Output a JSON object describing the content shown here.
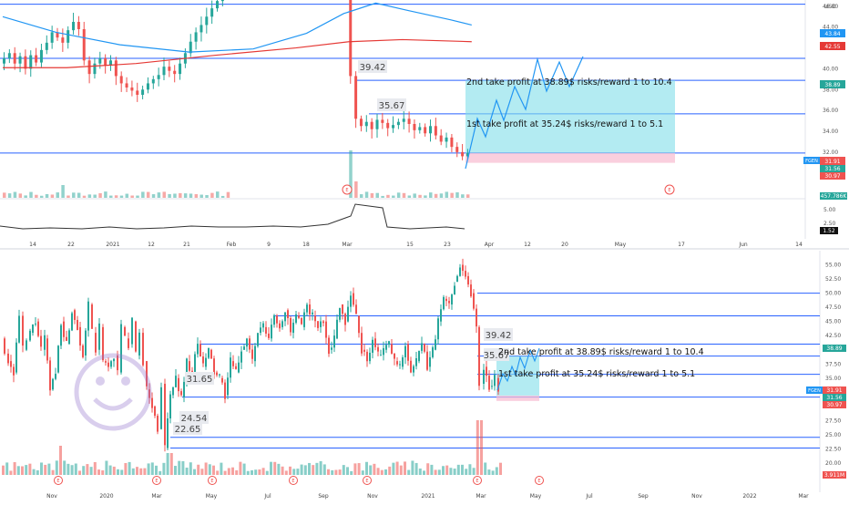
{
  "chart_data": [
    {
      "type": "candlestick",
      "symbol": "FGEN",
      "currency_label": "USD",
      "ylim": [
        30,
        46
      ],
      "y_ticks": [
        32,
        34,
        36,
        38,
        40,
        42,
        44,
        46
      ],
      "x_tick_labels": [
        "14",
        "22",
        "2021",
        "12",
        "21",
        "Feb",
        "9",
        "18",
        "Mar",
        "15",
        "23",
        "Apr",
        "12",
        "20",
        "May",
        "17",
        "Jun",
        "14"
      ],
      "price_labels": {
        "last": "31.91",
        "h1": "43.84",
        "h2": "42.55",
        "h3": "38.89",
        "h4": "31.56",
        "h5": "30.97"
      },
      "badges": {
        "high": "39.42",
        "mid": "35.67"
      },
      "annotations": {
        "tp2": "2nd take profit at 38.89$ risks/reward 1 to 10.4",
        "tp1": "1st take profit at 35.24$ risks/reward 1 to 5.1"
      },
      "horizontal_levels": [
        46.2,
        41.0,
        38.89,
        35.67,
        31.91
      ],
      "volume_label": "457.786K",
      "indicator_ticks": [
        "5.00",
        "2.50"
      ],
      "indicator_value": "1.52",
      "earnings_marker": "E",
      "moving_averages": {
        "blue": [
          [
            0,
            45.0
          ],
          [
            10,
            43.5
          ],
          [
            22,
            42.3
          ],
          [
            35,
            41.6
          ],
          [
            47,
            41.9
          ],
          [
            57,
            43.4
          ],
          [
            64,
            45.3
          ],
          [
            70,
            46.3
          ],
          [
            76,
            45.6
          ],
          [
            84,
            44.7
          ],
          [
            88,
            44.2
          ]
        ],
        "red": [
          [
            0,
            40.1
          ],
          [
            12,
            40.1
          ],
          [
            25,
            40.5
          ],
          [
            40,
            41.3
          ],
          [
            55,
            42.0
          ],
          [
            65,
            42.6
          ],
          [
            75,
            42.8
          ],
          [
            88,
            42.6
          ]
        ]
      },
      "trade_box": {
        "entry": 31.91,
        "target": 38.89,
        "stop": 30.97
      }
    },
    {
      "type": "candlestick",
      "symbol": "FGEN",
      "ylim": [
        20,
        57.5
      ],
      "y_ticks": [
        "20.00",
        "22.50",
        "25.00",
        "27.50",
        "30.00",
        "32.50",
        "35.00",
        "37.50",
        "40.00",
        "42.50",
        "45.00",
        "47.50",
        "50.00",
        "52.50",
        "55.00"
      ],
      "x_tick_labels": [
        "Nov",
        "2020",
        "Mar",
        "May",
        "Jul",
        "Sep",
        "Nov",
        "2021",
        "Mar",
        "May",
        "Jul",
        "Sep",
        "Nov",
        "2022",
        "Mar"
      ],
      "price_labels": {
        "last": "31.91",
        "p1": "38.89",
        "p2": "31.56",
        "p3": "30.97"
      },
      "badges": {
        "b1": "39.42",
        "b2": "35.67",
        "b3": "31.65",
        "b4": "24.54",
        "b5": "22.65"
      },
      "annotations": {
        "tp2": "2nd take profit at 38.89$ risks/reward 1 to 10.4",
        "tp1": "1st take profit at 35.24$ risks/reward 1 to 5.1"
      },
      "horizontal_levels": [
        50.0,
        46.0,
        41.0,
        38.89,
        35.67,
        31.65,
        24.54,
        22.65
      ],
      "volume_label": "3.911M",
      "earnings_marker": "E"
    }
  ],
  "colors": {
    "up": "#26a69a",
    "down": "#ef5350",
    "level": "#2962ff",
    "ma_blue": "#2196f3",
    "ma_red": "#e53935",
    "box": "#80deea"
  }
}
